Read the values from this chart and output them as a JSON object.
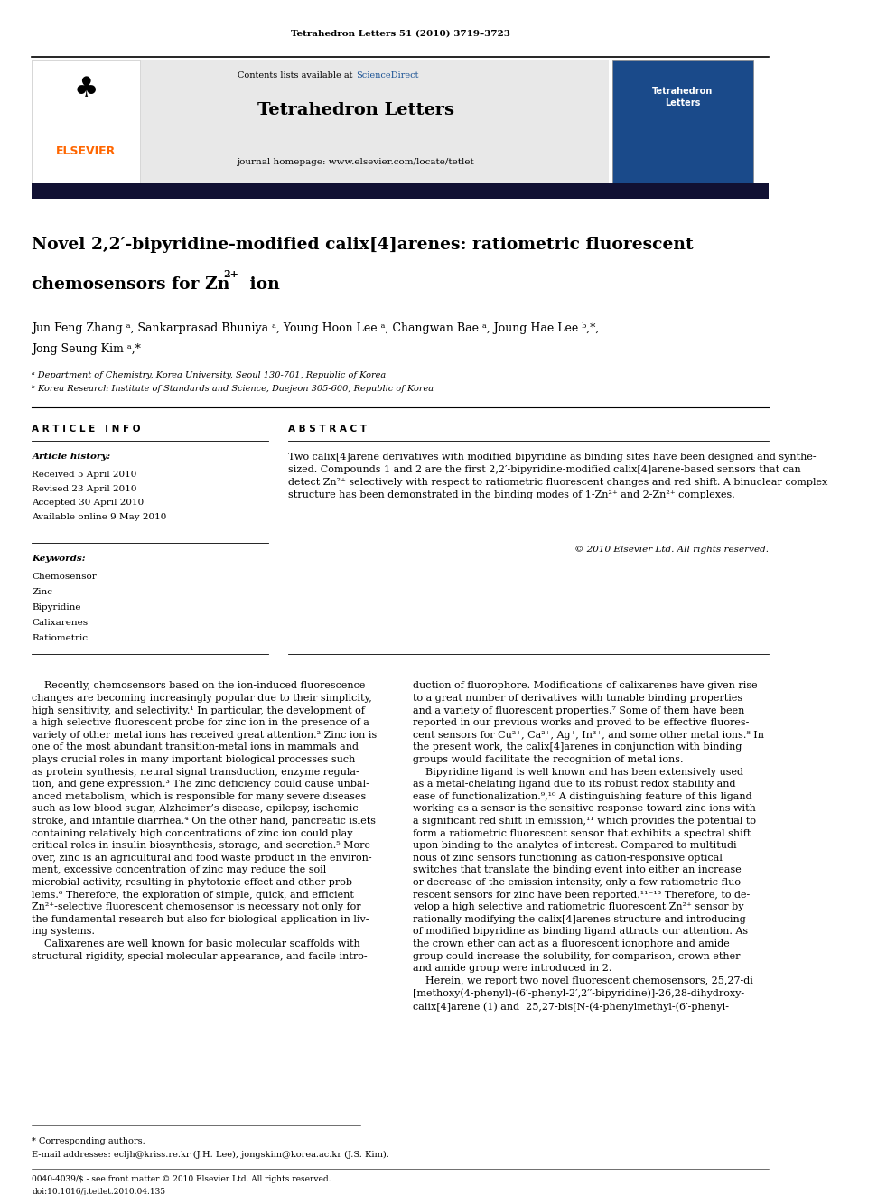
{
  "page_width": 9.92,
  "page_height": 13.23,
  "bg_color": "#ffffff",
  "journal_ref": "Tetrahedron Letters 51 (2010) 3719–3723",
  "header_bg": "#e8e8e8",
  "contents_text": "Contents lists available at ",
  "sciencedirect_text": "ScienceDirect",
  "sciencedirect_color": "#1a5294",
  "journal_title": "Tetrahedron Letters",
  "journal_homepage": "journal homepage: www.elsevier.com/locate/tetlet",
  "elsevier_color": "#ff6600",
  "elsevier_text": "ELSEVIER",
  "dark_bar_color": "#111133",
  "paper_title_line1": "Novel 2,2′-bipyridine-modified calix[4]arenes: ratiometric fluorescent",
  "paper_title_line2": "chemosensors for Zn",
  "paper_title_line2b": "2+",
  "paper_title_line2c": " ion",
  "authors": "Jun Feng Zhang ᵃ, Sankarprasad Bhuniya ᵃ, Young Hoon Lee ᵃ, Changwan Bae ᵃ, Joung Hae Lee ᵇ,*,",
  "authors2": "Jong Seung Kim ᵃ,*",
  "affil_a": "ᵃ Department of Chemistry, Korea University, Seoul 130-701, Republic of Korea",
  "affil_b": "ᵇ Korea Research Institute of Standards and Science, Daejeon 305-600, Republic of Korea",
  "article_info_header": "A R T I C L E   I N F O",
  "abstract_header": "A B S T R A C T",
  "article_history_label": "Article history:",
  "received": "Received 5 April 2010",
  "revised": "Revised 23 April 2010",
  "accepted": "Accepted 30 April 2010",
  "available": "Available online 9 May 2010",
  "keywords_label": "Keywords:",
  "keywords": [
    "Chemosensor",
    "Zinc",
    "Bipyridine",
    "Calixarenes",
    "Ratiometric"
  ],
  "copyright": "© 2010 Elsevier Ltd. All rights reserved.",
  "footnote1": "* Corresponding authors.",
  "footnote2": "E-mail addresses: ecljh@kriss.re.kr (J.H. Lee), jongskim@korea.ac.kr (J.S. Kim).",
  "footer1": "0040-4039/$ - see front matter © 2010 Elsevier Ltd. All rights reserved.",
  "footer2": "doi:10.1016/j.tetlet.2010.04.135"
}
